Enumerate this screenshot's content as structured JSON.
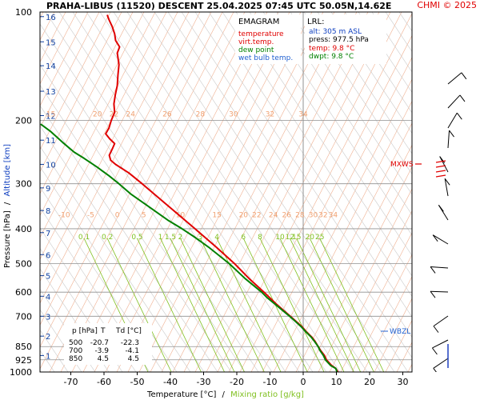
{
  "header": {
    "title": "PRAHA-LIBUS (11520)   DESCENT   25.04.2025 07:45 UTC   50.05N,14.62E",
    "credit": "CHMI © 2025"
  },
  "colors": {
    "temperature": "#e00000",
    "virt_temp": "#e00000",
    "dew_point": "#008000",
    "wet_bulb": "#2060d0",
    "isotherm": "#f0b090",
    "dry_adiabat": "#c8c8c8",
    "moist_adiabat": "#b0b0c8",
    "mixing_ratio": "#80c020",
    "isobar": "#909090",
    "height_label": "#1040a0",
    "mixing_label": "#80c020",
    "isotherm_label": "#f0a070"
  },
  "legend": {
    "title": "EMAGRAM",
    "items": [
      {
        "label": "temperature",
        "color": "#e00000"
      },
      {
        "label": "virt.temp.",
        "color": "#e00000"
      },
      {
        "label": "dew point",
        "color": "#008000"
      },
      {
        "label": "wet bulb temp.",
        "color": "#2060d0"
      }
    ]
  },
  "lrl": {
    "title": "LRL:",
    "lines": [
      {
        "text": "alt: 305 m ASL",
        "color": "#1040c0"
      },
      {
        "text": "press: 977.5 hPa",
        "color": "#000000"
      },
      {
        "text": "temp: 9.8 °C",
        "color": "#e00000"
      },
      {
        "text": "dwpt: 9.8 °C",
        "color": "#008000"
      }
    ]
  },
  "levels_table": {
    "headers": [
      "p [hPa]",
      "T",
      "Td [°C]"
    ],
    "rows": [
      [
        "500",
        "-20.7",
        "-22.3"
      ],
      [
        "700",
        "-3.9",
        "-4.1"
      ],
      [
        "850",
        "4.5",
        "4.5"
      ]
    ]
  },
  "markers": {
    "mxws": "MXWS",
    "wbzl": "WBZL"
  },
  "chart_data": {
    "type": "line",
    "title": "PRAHA-LIBUS (11520)   DESCENT   25.04.2025 07:45 UTC   50.05N,14.62E",
    "ylabel_part1": "Pressure [hPa]",
    "ylabel_sep": "/",
    "ylabel_part2": "Altitude [km]",
    "xlabel_part1": "Temperature [°C]",
    "xlabel_sep": "/",
    "xlabel_part2": "Mixing ratio [g/kg]",
    "y_scale": "log",
    "ylim": [
      1000,
      100
    ],
    "xlim": [
      -80,
      33
    ],
    "x_ticks": [
      "-70",
      "-60",
      "-50",
      "-40",
      "-30",
      "-20",
      "-10",
      "0",
      "10",
      "20",
      "30"
    ],
    "y_ticks": [
      "100",
      "200",
      "300",
      "400",
      "500",
      "600",
      "700",
      "850",
      "925",
      "1000"
    ],
    "altitude_labels": [
      {
        "km": "1",
        "p": 900
      },
      {
        "km": "2",
        "p": 795
      },
      {
        "km": "3",
        "p": 700
      },
      {
        "km": "4",
        "p": 616
      },
      {
        "km": "5",
        "p": 540
      },
      {
        "km": "6",
        "p": 472
      },
      {
        "km": "7",
        "p": 410
      },
      {
        "km": "8",
        "p": 356
      },
      {
        "km": "9",
        "p": 308
      },
      {
        "km": "10",
        "p": 265
      },
      {
        "km": "11",
        "p": 227
      },
      {
        "km": "12",
        "p": 194
      },
      {
        "km": "13",
        "p": 166
      },
      {
        "km": "14",
        "p": 141
      },
      {
        "km": "15",
        "p": 121
      },
      {
        "km": "16",
        "p": 103
      }
    ],
    "isotherm_labels_upper": {
      "p": 197,
      "values": [
        "15",
        "20",
        "22",
        "24",
        "26",
        "28",
        "30",
        "32",
        "34"
      ],
      "t": [
        -76,
        -62,
        -57,
        -52,
        -41,
        -31,
        -21,
        -10,
        0
      ]
    },
    "isotherm_labels_lower": {
      "p": 375,
      "values": [
        "-10",
        "-5",
        "0",
        "5",
        "10",
        "15",
        "20",
        "22",
        "24",
        "26",
        "28",
        "30",
        "32",
        "34"
      ],
      "t": [
        -72,
        -64,
        -56,
        -48,
        -37,
        -26,
        -18,
        -14,
        -9,
        -5,
        -1,
        3,
        6,
        9
      ]
    },
    "mixing_ratio_labels": {
      "p": 400,
      "values": [
        "0.1",
        "0.2",
        "0.5",
        "1",
        "1.5",
        "2",
        "3",
        "4",
        "6",
        "8",
        "10",
        "12",
        "15",
        "20",
        "25"
      ],
      "t": [
        -66,
        -59,
        -50,
        -43,
        -40,
        -37,
        -31,
        -26,
        -18,
        -13,
        -7,
        -4,
        -2,
        2,
        5
      ]
    },
    "series": [
      {
        "name": "temperature",
        "color": "#e00000",
        "points": [
          {
            "p": 1000,
            "t": 10.5
          },
          {
            "p": 977,
            "t": 9.8
          },
          {
            "p": 960,
            "t": 8.6
          },
          {
            "p": 925,
            "t": 7.0
          },
          {
            "p": 900,
            "t": 6.4
          },
          {
            "p": 870,
            "t": 5.2
          },
          {
            "p": 850,
            "t": 4.5
          },
          {
            "p": 820,
            "t": 3.5
          },
          {
            "p": 800,
            "t": 2.6
          },
          {
            "p": 770,
            "t": 0.8
          },
          {
            "p": 750,
            "t": -0.3
          },
          {
            "p": 720,
            "t": -2.4
          },
          {
            "p": 700,
            "t": -3.9
          },
          {
            "p": 650,
            "t": -7.9
          },
          {
            "p": 600,
            "t": -11.8
          },
          {
            "p": 550,
            "t": -16.3
          },
          {
            "p": 500,
            "t": -20.7
          },
          {
            "p": 450,
            "t": -26.2
          },
          {
            "p": 400,
            "t": -32.6
          },
          {
            "p": 350,
            "t": -40.0
          },
          {
            "p": 300,
            "t": -48.5
          },
          {
            "p": 280,
            "t": -52.5
          },
          {
            "p": 265,
            "t": -56.5
          },
          {
            "p": 258,
            "t": -58.0
          },
          {
            "p": 250,
            "t": -58.4
          },
          {
            "p": 240,
            "t": -57.5
          },
          {
            "p": 232,
            "t": -56.8
          },
          {
            "p": 225,
            "t": -58.3
          },
          {
            "p": 218,
            "t": -59.5
          },
          {
            "p": 210,
            "t": -58.5
          },
          {
            "p": 200,
            "t": -57.8
          },
          {
            "p": 190,
            "t": -56.8
          },
          {
            "p": 180,
            "t": -57.0
          },
          {
            "p": 170,
            "t": -56.6
          },
          {
            "p": 160,
            "t": -56.0
          },
          {
            "p": 150,
            "t": -55.8
          },
          {
            "p": 140,
            "t": -55.5
          },
          {
            "p": 130,
            "t": -56.0
          },
          {
            "p": 125,
            "t": -55.3
          },
          {
            "p": 120,
            "t": -56.5
          },
          {
            "p": 115,
            "t": -56.8
          },
          {
            "p": 110,
            "t": -57.5
          },
          {
            "p": 105,
            "t": -58.5
          },
          {
            "p": 102,
            "t": -59.0
          }
        ]
      },
      {
        "name": "dew point",
        "color": "#008000",
        "points": [
          {
            "p": 1000,
            "t": 10.2
          },
          {
            "p": 977,
            "t": 9.8
          },
          {
            "p": 960,
            "t": 8.3
          },
          {
            "p": 925,
            "t": 6.7
          },
          {
            "p": 900,
            "t": 6.1
          },
          {
            "p": 870,
            "t": 5.0
          },
          {
            "p": 850,
            "t": 4.5
          },
          {
            "p": 820,
            "t": 3.3
          },
          {
            "p": 800,
            "t": 2.4
          },
          {
            "p": 770,
            "t": 0.6
          },
          {
            "p": 750,
            "t": -0.5
          },
          {
            "p": 720,
            "t": -2.6
          },
          {
            "p": 700,
            "t": -4.1
          },
          {
            "p": 650,
            "t": -8.3
          },
          {
            "p": 620,
            "t": -11.0
          },
          {
            "p": 600,
            "t": -12.5
          },
          {
            "p": 550,
            "t": -17.5
          },
          {
            "p": 500,
            "t": -22.3
          },
          {
            "p": 450,
            "t": -28.5
          },
          {
            "p": 420,
            "t": -33.0
          },
          {
            "p": 400,
            "t": -36.5
          },
          {
            "p": 380,
            "t": -40.5
          },
          {
            "p": 350,
            "t": -46.0
          },
          {
            "p": 320,
            "t": -52.0
          },
          {
            "p": 300,
            "t": -55.5
          },
          {
            "p": 285,
            "t": -58.5
          },
          {
            "p": 270,
            "t": -62.0
          },
          {
            "p": 255,
            "t": -66.0
          },
          {
            "p": 245,
            "t": -69.0
          },
          {
            "p": 230,
            "t": -72.5
          },
          {
            "p": 215,
            "t": -76.0
          },
          {
            "p": 205,
            "t": -79.0
          }
        ]
      }
    ]
  }
}
